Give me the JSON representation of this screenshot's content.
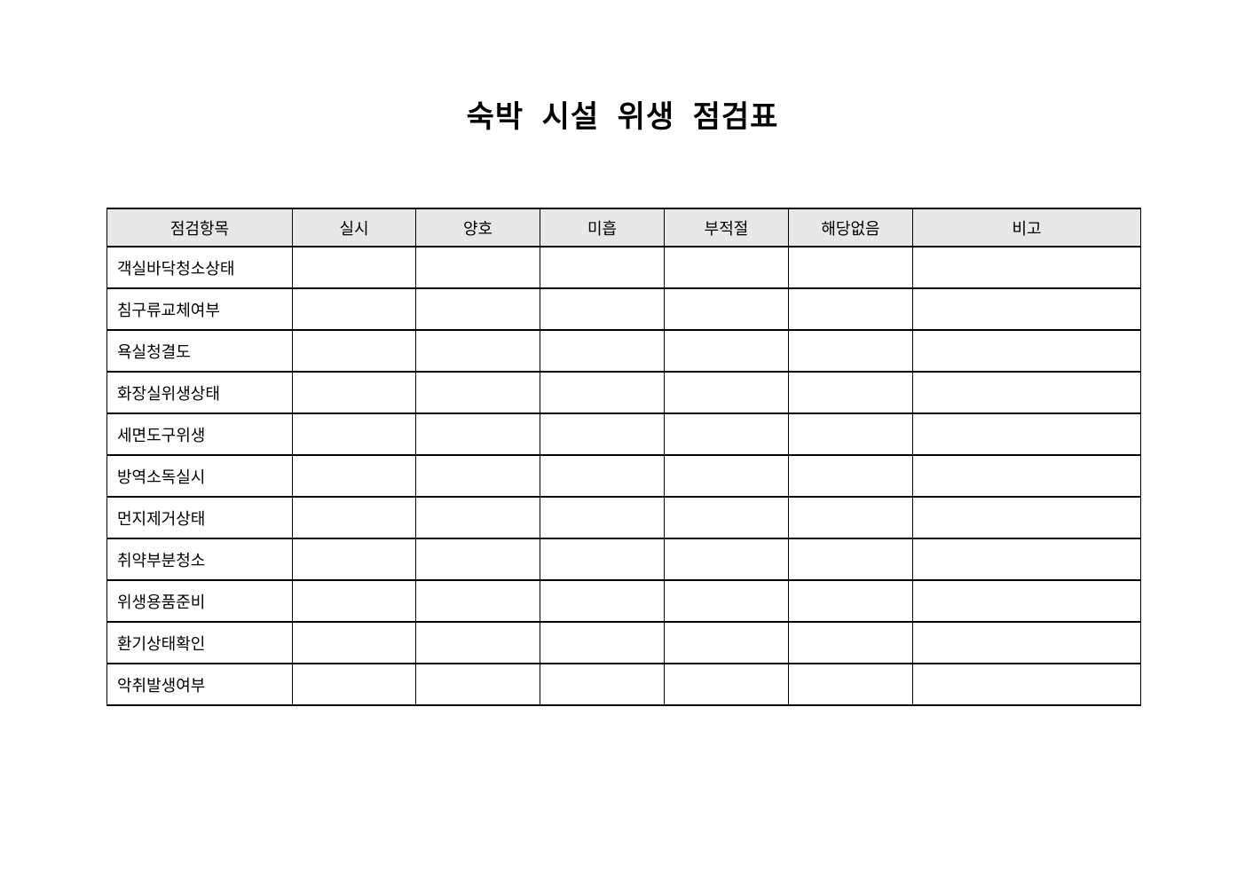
{
  "page": {
    "title": "숙박 시설 위생 점검표"
  },
  "colors": {
    "header_bg": "#e8e8e8",
    "border": "#000000",
    "text": "#000000",
    "page_bg": "#ffffff"
  },
  "table": {
    "headers": [
      "점검항목",
      "실시",
      "양호",
      "미흡",
      "부적절",
      "해당없음",
      "비고"
    ],
    "rows": [
      "객실바닥청소상태",
      "침구류교체여부",
      "욕실청결도",
      "화장실위생상태",
      "세면도구위생",
      "방역소독실시",
      "먼지제거상태",
      "취약부분청소",
      "위생용품준비",
      "환기상태확인",
      "악취발생여부"
    ]
  }
}
